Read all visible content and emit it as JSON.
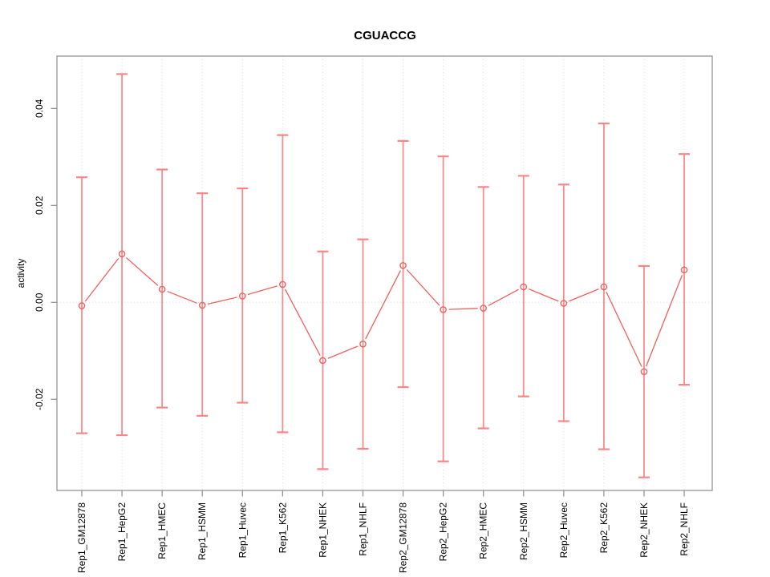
{
  "chart_data": {
    "type": "line",
    "subtype": "points-with-error-bars",
    "title": "CGUACCG",
    "xlabel": "",
    "ylabel": "activity",
    "categories": [
      "Rep1_GM12878",
      "Rep1_HepG2",
      "Rep1_HMEC",
      "Rep1_HSMM",
      "Rep1_Huvec",
      "Rep1_K562",
      "Rep1_NHEK",
      "Rep1_NHLF",
      "Rep2_GM12878",
      "Rep2_HepG2",
      "Rep2_HMEC",
      "Rep2_HSMM",
      "Rep2_Huvec",
      "Rep2_K562",
      "Rep2_NHEK",
      "Rep2_NHLF"
    ],
    "series": [
      {
        "name": "activity",
        "values": [
          -0.0007,
          0.01,
          0.0027,
          -0.0006,
          0.0013,
          0.0037,
          -0.012,
          -0.0086,
          0.0076,
          -0.0015,
          -0.0012,
          0.0032,
          -0.0002,
          0.0032,
          -0.0143,
          0.0067
        ],
        "upper": [
          0.0258,
          0.0471,
          0.0274,
          0.0225,
          0.0235,
          0.0345,
          0.0105,
          0.013,
          0.0333,
          0.0301,
          0.0238,
          0.0261,
          0.0243,
          0.0369,
          0.0075,
          0.0306
        ],
        "lower": [
          -0.027,
          -0.0274,
          -0.0217,
          -0.0234,
          -0.0207,
          -0.0268,
          -0.0344,
          -0.0302,
          -0.0175,
          -0.0328,
          -0.026,
          -0.0194,
          -0.0245,
          -0.0303,
          -0.0361,
          -0.017
        ]
      }
    ],
    "yticks": [
      -0.02,
      0.0,
      0.02,
      0.04
    ],
    "ytick_labels": [
      "-0.02",
      "0.00",
      "0.02",
      "0.04"
    ],
    "ylim": [
      -0.0388,
      0.0508
    ],
    "reference_line_y": 0,
    "grid": "vertical-dotted-per-category-plus-zero-line",
    "legend": "none",
    "xtick_label_rotation_deg": 90,
    "colors": {
      "error_bar": "#f98080",
      "error_cap": "#f98080",
      "series_line": "#f25f5f",
      "point_stroke": "#f25f5f",
      "grid_line": "#dcdcdc",
      "zero_line": "#d8d8d8",
      "box": "#8c8c8c",
      "text": "#000000"
    }
  }
}
